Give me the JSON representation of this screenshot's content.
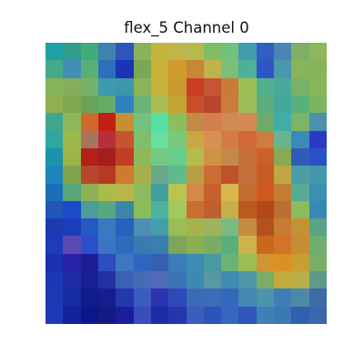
{
  "title": "flex_5 Channel 0",
  "grid": {
    "rows": 16,
    "cols": 16,
    "colors": [
      [
        "#1fa0a6",
        "#2f9c8c",
        "#42ab7a",
        "#3c83ad",
        "#2f55b8",
        "#8bb25a",
        "#c3b43c",
        "#c0b44a",
        "#b4ba4e",
        "#7fbe64",
        "#6fc27a",
        "#3f9dae",
        "#2f5fc0",
        "#4a86b4",
        "#7fae68",
        "#8eb65a"
      ],
      [
        "#45aa88",
        "#3f8fb8",
        "#59b075",
        "#2c6fba",
        "#1c33b8",
        "#7aa655",
        "#c8b23a",
        "#d19a2c",
        "#c68737",
        "#c0b24a",
        "#7ac07a",
        "#4cb09a",
        "#2f55c4",
        "#4a99aa",
        "#88b45a",
        "#86b458"
      ],
      [
        "#86b25a",
        "#84ae5a",
        "#74b26c",
        "#3d99ab",
        "#3a98aa",
        "#8ab45a",
        "#c4b23a",
        "#c99a30",
        "#cb3c24",
        "#c55633",
        "#cb7a38",
        "#9cbf58",
        "#53b08c",
        "#48aa9a",
        "#78b26a",
        "#8ab65a"
      ],
      [
        "#8eb052",
        "#7fa851",
        "#6aa35a",
        "#64ac68",
        "#2d82bd",
        "#6ab278",
        "#a8bd52",
        "#c6a233",
        "#c74e2a",
        "#b6452c",
        "#cf7a3d",
        "#9fbd58",
        "#5aad7c",
        "#44a69a",
        "#5ab07a",
        "#7cb55c"
      ],
      [
        "#3ea88f",
        "#8cb857",
        "#cd6a2e",
        "#c31f17",
        "#c68f34",
        "#74c07f",
        "#56dfa2",
        "#8bbf5e",
        "#c08c44",
        "#d47e4e",
        "#cf8a52",
        "#d48a52",
        "#6dab6b",
        "#41aea5",
        "#7eb36a",
        "#4b90ad"
      ],
      [
        "#30a6a1",
        "#9ab948",
        "#a7755e",
        "#b5303a",
        "#c65430",
        "#7fbe6a",
        "#68df9e",
        "#79c97a",
        "#cda644",
        "#d79053",
        "#d37c43",
        "#d16839",
        "#cf7d3c",
        "#67b58c",
        "#3b8ab8",
        "#2b3ac6"
      ],
      [
        "#1c93a8",
        "#9db447",
        "#b22018",
        "#a51e1e",
        "#c23d27",
        "#8fb85a",
        "#76c982",
        "#68ce8c",
        "#b4bd4c",
        "#cd9343",
        "#c28a48",
        "#c76f38",
        "#cc6028",
        "#8aa954",
        "#2f5cb5",
        "#2a52c7"
      ],
      [
        "#1d86b8",
        "#84a34f",
        "#b6472b",
        "#b83922",
        "#cf7a2e",
        "#a6b04a",
        "#69a888",
        "#5fba8e",
        "#ba9e43",
        "#cb6d35",
        "#be5229",
        "#c46e3c",
        "#c85a23",
        "#c0a644",
        "#4a9ea6",
        "#4497ac"
      ],
      [
        "#1b6fba",
        "#57a57a",
        "#8cb257",
        "#a9bc49",
        "#b6b74a",
        "#8dbb5d",
        "#3f9f9f",
        "#b8c650",
        "#d48a4a",
        "#c4612e",
        "#d7b64c",
        "#c46b30",
        "#ce5a1f",
        "#c27d32",
        "#58ab92",
        "#3a90b2"
      ],
      [
        "#2057b6",
        "#1b4bc8",
        "#4b9d9a",
        "#5aa680",
        "#3b86a6",
        "#8cbb5a",
        "#4db39e",
        "#a4c860",
        "#c96f34",
        "#bf5f2f",
        "#c7ae48",
        "#bb5a1e",
        "#b54817",
        "#bb6e31",
        "#8ebc5c",
        "#3689b4"
      ],
      [
        "#1d3ab2",
        "#1b3dba",
        "#2657c3",
        "#3a79bd",
        "#2960c0",
        "#4d8fb4",
        "#42a0a8",
        "#9abd55",
        "#a7b34c",
        "#9cb45e",
        "#78bc82",
        "#c58c3d",
        "#b55121",
        "#ca7b33",
        "#c49134",
        "#5aa484"
      ],
      [
        "#1e3bbd",
        "#5a48b4",
        "#2b4ecc",
        "#3c75c4",
        "#2d6cbd",
        "#3d78b0",
        "#3b7eb0",
        "#7ea65a",
        "#8bb04f",
        "#7aad62",
        "#57b07c",
        "#cfb24a",
        "#c9671f",
        "#d3732a",
        "#c68d36",
        "#71ad70"
      ],
      [
        "#1b2fb3",
        "#2a22a6",
        "#1b1f95",
        "#2d4cc0",
        "#3f76c2",
        "#2d67bf",
        "#365fb2",
        "#3c7cb9",
        "#3d8ab2",
        "#4a98a0",
        "#6ab276",
        "#9cbd55",
        "#d09430",
        "#d89224",
        "#c89f34",
        "#7aae68"
      ],
      [
        "#1c36b4",
        "#1d2aa4",
        "#181f96",
        "#2431a4",
        "#3962b5",
        "#466ab5",
        "#4f6ab6",
        "#3775b4",
        "#3d8ab0",
        "#5798a3",
        "#3f8cb0",
        "#4d96a7",
        "#7cac65",
        "#c2aa3e",
        "#b8ae47",
        "#5c9a8a"
      ],
      [
        "#1e38b5",
        "#162b9f",
        "#101c8a",
        "#161d8e",
        "#2338ac",
        "#3b5bbf",
        "#2b33b0",
        "#2e4ab6",
        "#3b6ab6",
        "#3a6cba",
        "#3269ba",
        "#4487b0",
        "#4a95ac",
        "#3d7fb4",
        "#4a8aa6",
        "#3c6ca8"
      ],
      [
        "#1f3ab8",
        "#13239b",
        "#0b1789",
        "#141a84",
        "#1b1e9a",
        "#3a4bbc",
        "#1d2ba6",
        "#2435ad",
        "#3a5ebc",
        "#2f52bb",
        "#3466c0",
        "#2e56bc",
        "#3f7fb4",
        "#3a78b4",
        "#2f5fb0",
        "#3a66ac"
      ]
    ]
  }
}
